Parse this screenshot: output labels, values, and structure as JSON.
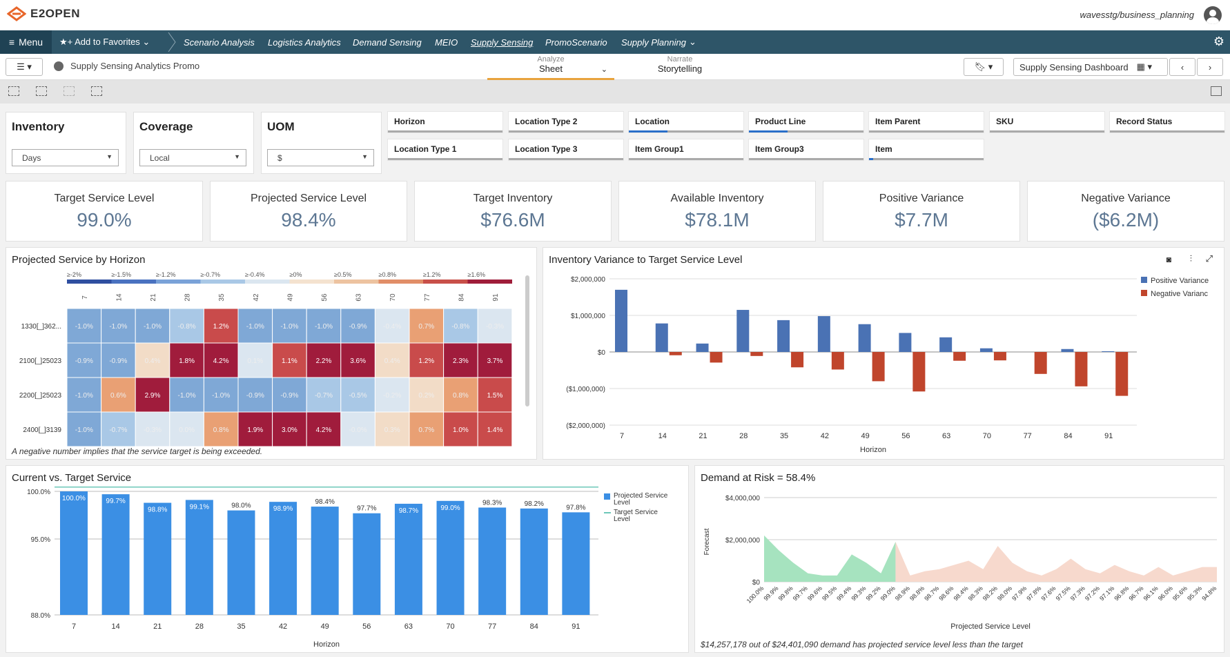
{
  "header": {
    "brand": "E2OPEN",
    "user": "wavesstg/business_planning"
  },
  "nav": {
    "menu": "Menu",
    "favorites": "Add to Favorites",
    "items": [
      "Scenario Analysis",
      "Logistics Analytics",
      "Demand Sensing",
      "MEIO",
      "Supply Sensing",
      "PromoScenario",
      "Supply Planning"
    ]
  },
  "subbar": {
    "title": "Supply Sensing Analytics Promo",
    "analyze_label": "Analyze",
    "analyze_value": "Sheet",
    "narrate_label": "Narrate",
    "narrate_value": "Storytelling",
    "dashboard": "Supply Sensing Dashboard"
  },
  "filters": {
    "inventory": {
      "label": "Inventory",
      "value": "Days"
    },
    "coverage": {
      "label": "Coverage",
      "value": "Local"
    },
    "uom": {
      "label": "UOM",
      "value": "$"
    },
    "chips": [
      "Horizon",
      "Location Type 2",
      "Location",
      "Product Line",
      "Item Parent",
      "SKU",
      "Record Status",
      "Location Type 1",
      "Location Type 3",
      "Item Group1",
      "Item Group3",
      "Item"
    ]
  },
  "kpis": [
    {
      "label": "Target Service Level",
      "value": "99.0%"
    },
    {
      "label": "Projected Service Level",
      "value": "98.4%"
    },
    {
      "label": "Target Inventory",
      "value": "$76.6M"
    },
    {
      "label": "Available Inventory",
      "value": "$78.1M"
    },
    {
      "label": "Positive Variance",
      "value": "$7.7M"
    },
    {
      "label": "Negative Variance",
      "value": "($6.2M)"
    }
  ],
  "heatmap": {
    "title": "Projected Service by Horizon",
    "note": "A negative number implies that the service target is being exceeded.",
    "legend": [
      "≥-2%",
      "≥-1.5%",
      "≥-1.2%",
      "≥-0.7%",
      "≥-0.4%",
      "≥0%",
      "≥0.5%",
      "≥0.8%",
      "≥1.2%",
      "≥1.6%"
    ],
    "cols": [
      "7",
      "14",
      "21",
      "28",
      "35",
      "42",
      "49",
      "56",
      "63",
      "70",
      "77",
      "84",
      "91"
    ],
    "rows": [
      "1330[_]362...",
      "2100[_]25023",
      "2200[_]25023",
      "2400[_]3139"
    ],
    "values": [
      [
        "-1.0%",
        "-1.0%",
        "-1.0%",
        "-0.8%",
        "1.2%",
        "-1.0%",
        "-1.0%",
        "-1.0%",
        "-0.9%",
        "-0.4%",
        "0.7%",
        "-0.8%",
        "-0.3%"
      ],
      [
        "-0.9%",
        "-0.9%",
        "0.4%",
        "1.8%",
        "4.2%",
        "0.1%",
        "1.1%",
        "2.2%",
        "3.6%",
        "0.4%",
        "1.2%",
        "2.3%",
        "3.7%"
      ],
      [
        "-1.0%",
        "0.6%",
        "2.9%",
        "-1.0%",
        "-1.0%",
        "-0.9%",
        "-0.9%",
        "-0.7%",
        "-0.5%",
        "-0.2%",
        "0.2%",
        "0.8%",
        "1.5%"
      ],
      [
        "-1.0%",
        "-0.7%",
        "-0.3%",
        "0.0%",
        "0.8%",
        "1.9%",
        "3.0%",
        "4.2%",
        "-0.0%",
        "0.3%",
        "0.7%",
        "1.0%",
        "1.4%"
      ]
    ],
    "colors": [
      "#7fa8d6",
      "#a9c8e6",
      "#dbe6f0",
      "#f2dcc7",
      "#e9a074",
      "#e0b190",
      "#b0263f",
      "#a01c3c"
    ]
  },
  "chart_data": [
    {
      "type": "bar",
      "title": "Inventory Variance to Target Service Level",
      "xlabel": "Horizon",
      "ylim": [
        -2000000,
        2000000
      ],
      "yticks": [
        "$2,000,000",
        "$1,000,000",
        "$0",
        "($1,000,000)",
        "($2,000,000)"
      ],
      "categories": [
        "7",
        "14",
        "21",
        "28",
        "35",
        "42",
        "49",
        "56",
        "63",
        "70",
        "77",
        "84",
        "91"
      ],
      "series": [
        {
          "name": "Positive Variance",
          "color": "#4a72b4",
          "values": [
            1700000,
            780000,
            230000,
            1150000,
            870000,
            980000,
            760000,
            520000,
            400000,
            100000,
            0,
            80000,
            20000
          ]
        },
        {
          "name": "Negative Varianc",
          "color": "#c0452c",
          "values": [
            0,
            -90000,
            -290000,
            -110000,
            -420000,
            -480000,
            -800000,
            -1080000,
            -240000,
            -230000,
            -600000,
            -940000,
            -1200000
          ]
        }
      ]
    },
    {
      "type": "bar",
      "title": "Current vs. Target Service",
      "xlabel": "Horizon",
      "ylim": [
        88,
        100
      ],
      "yticks": [
        "100.0%",
        "95.0%",
        "88.0%"
      ],
      "categories": [
        "7",
        "14",
        "21",
        "28",
        "35",
        "42",
        "49",
        "56",
        "63",
        "70",
        "77",
        "84",
        "91"
      ],
      "series": [
        {
          "name": "Projected Service Level",
          "color": "#3b8fe4",
          "values": [
            100.0,
            99.7,
            98.8,
            99.1,
            98.0,
            98.9,
            98.4,
            97.7,
            98.7,
            99.0,
            98.3,
            98.2,
            97.8
          ]
        },
        {
          "name": "Target Service Level",
          "color": "#6cc7b8",
          "values": [
            99.0,
            99.0,
            99.0,
            99.0,
            99.0,
            99.0,
            99.0,
            99.0,
            99.0,
            99.0,
            99.0,
            99.0,
            99.0
          ]
        }
      ],
      "labels": [
        "100.0%",
        "99.7%",
        "98.8%",
        "99.1%",
        "98.0%",
        "98.9%",
        "98.4%",
        "97.7%",
        "98.7%",
        "99.0%",
        "98.3%",
        "98.2%",
        "97.8%"
      ]
    },
    {
      "type": "area",
      "title": "Demand at Risk = 58.4%",
      "xlabel": "Projected Service Level",
      "ylabel": "Forecast",
      "ylim": [
        0,
        4000000
      ],
      "yticks": [
        "$4,000,000",
        "$2,000,000",
        "$0"
      ],
      "x": [
        "100.0%",
        "99.9%",
        "99.8%",
        "99.7%",
        "99.6%",
        "99.5%",
        "99.4%",
        "99.3%",
        "99.2%",
        "99.0%",
        "98.9%",
        "98.8%",
        "98.7%",
        "98.6%",
        "98.4%",
        "98.3%",
        "98.2%",
        "98.0%",
        "97.9%",
        "97.8%",
        "97.6%",
        "97.5%",
        "97.3%",
        "97.2%",
        "97.1%",
        "96.8%",
        "96.7%",
        "96.1%",
        "96.0%",
        "95.6%",
        "95.3%",
        "94.8%"
      ],
      "values": [
        2200000,
        1500000,
        900000,
        400000,
        300000,
        300000,
        1300000,
        900000,
        400000,
        1900000,
        300000,
        500000,
        600000,
        800000,
        1000000,
        600000,
        1700000,
        900000,
        500000,
        300000,
        600000,
        1100000,
        600000,
        400000,
        800000,
        500000,
        300000,
        700000,
        300000,
        500000,
        700000,
        700000
      ],
      "risk_from_index": 10,
      "colors": {
        "safe": "#a6e3bf",
        "risk": "#f7d9cd"
      },
      "note": "$14,257,178 out of $24,401,090 demand has projected service level less than the target"
    }
  ]
}
